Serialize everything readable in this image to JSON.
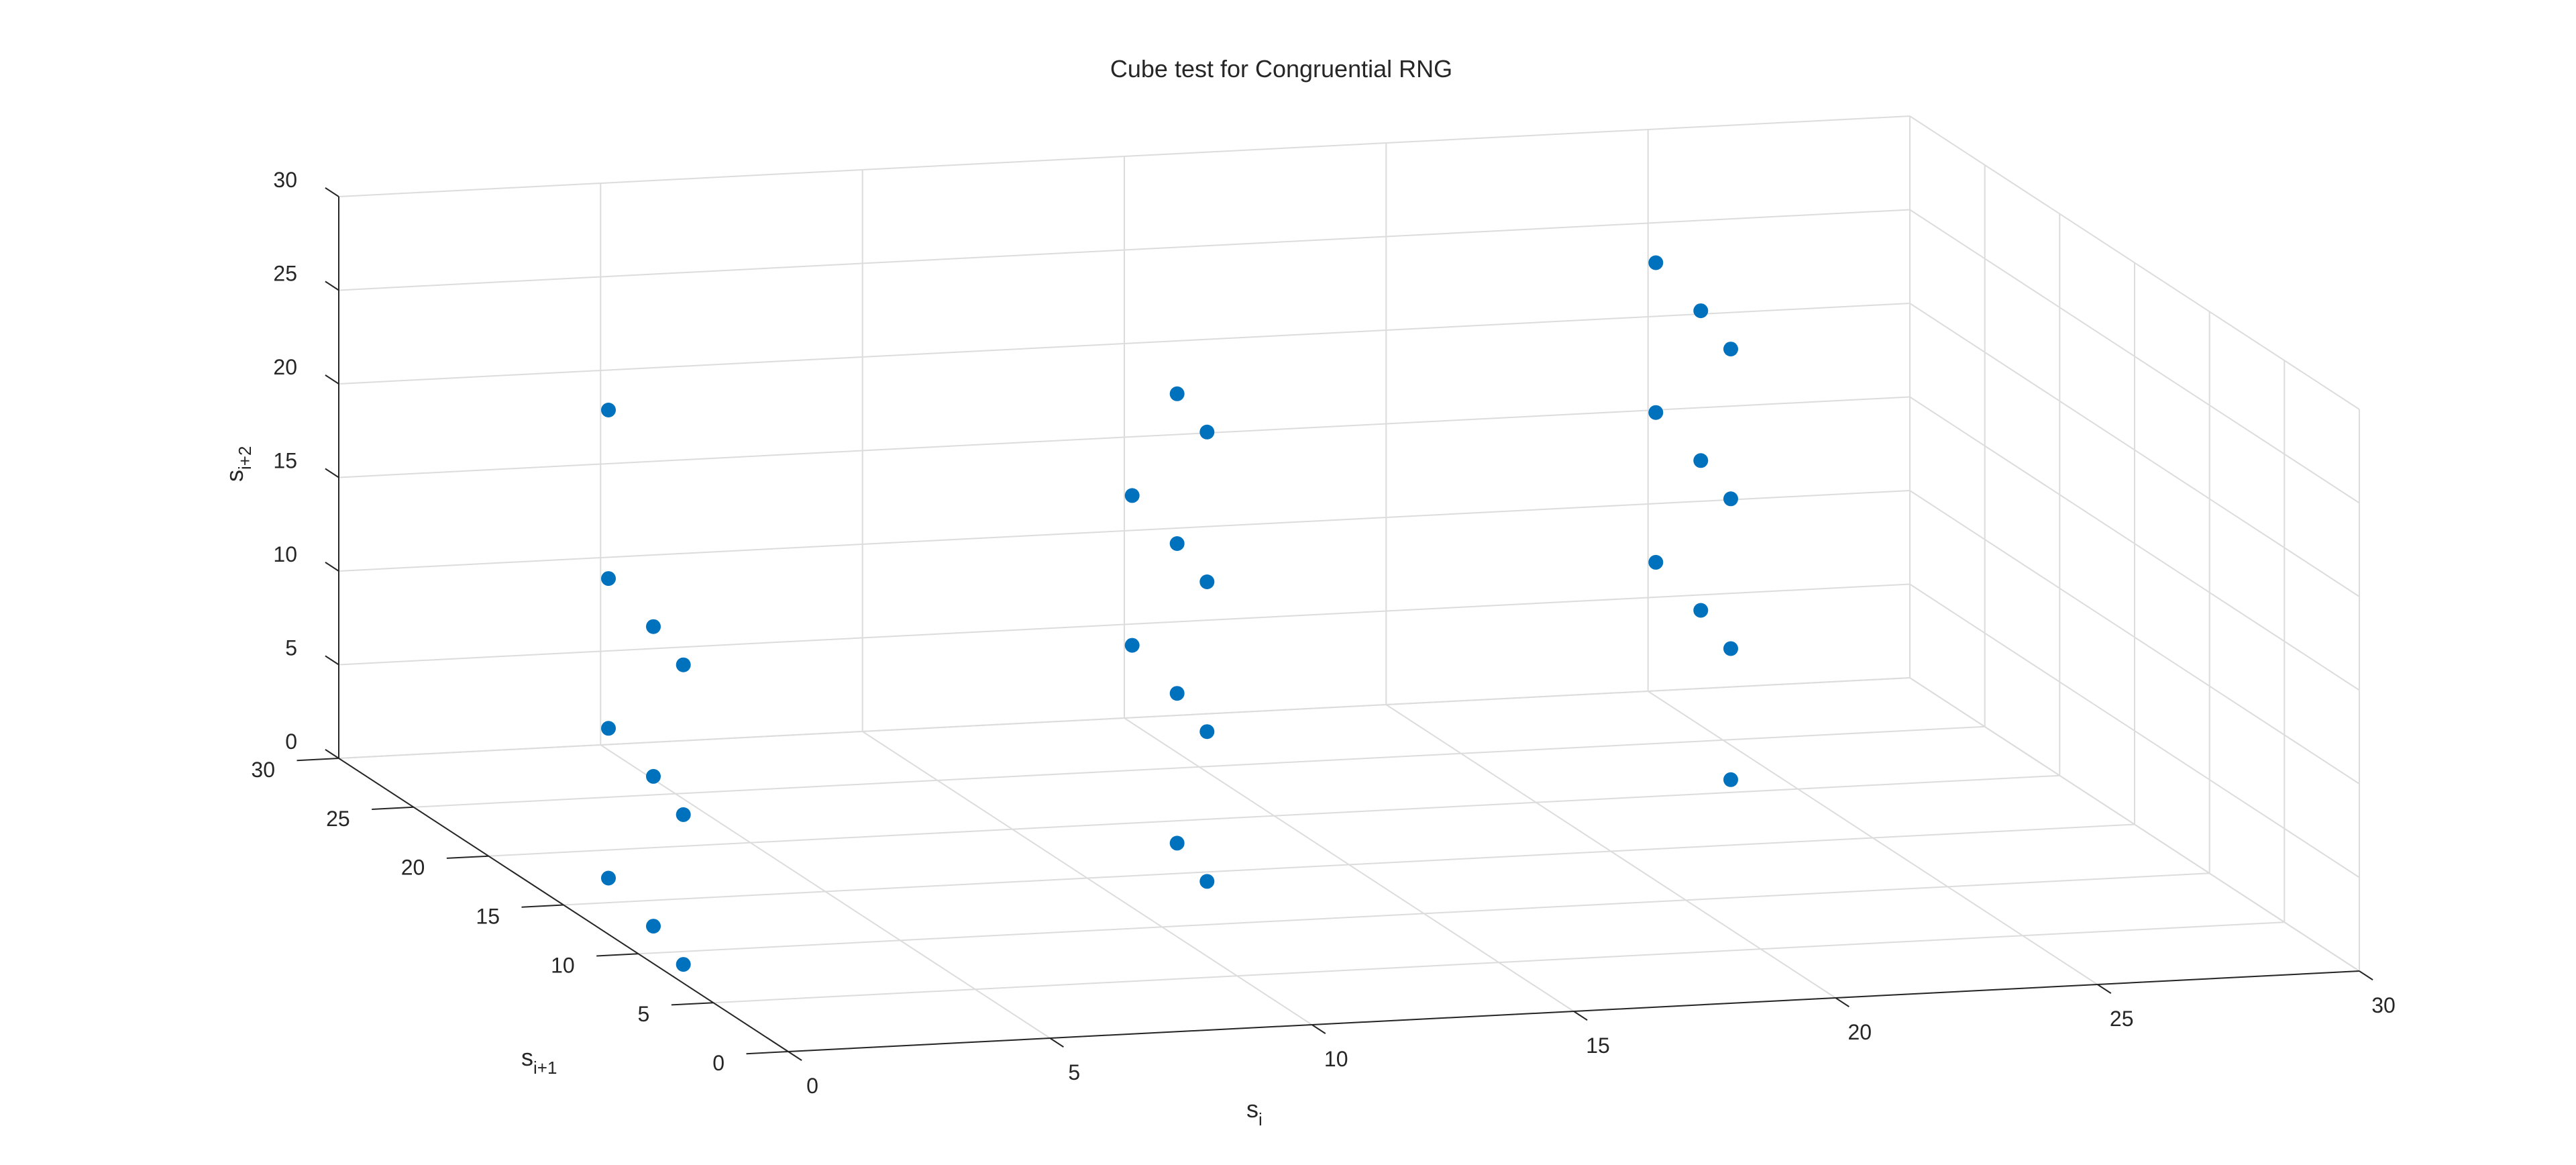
{
  "chart_data": {
    "type": "scatter3d",
    "title": "Cube test for Congruential RNG",
    "xlabel": {
      "main": "s",
      "sub": "i"
    },
    "ylabel": {
      "main": "s",
      "sub": "i+1"
    },
    "zlabel": {
      "main": "s",
      "sub": "i+2"
    },
    "xlim": [
      0,
      30
    ],
    "ylim": [
      0,
      30
    ],
    "zlim": [
      0,
      30
    ],
    "xticks": [
      "0",
      "5",
      "10",
      "15",
      "20",
      "25",
      "30"
    ],
    "yticks": [
      "0",
      "5",
      "10",
      "15",
      "20",
      "25",
      "30"
    ],
    "zticks": [
      "0",
      "5",
      "10",
      "15",
      "20",
      "25",
      "30"
    ],
    "grid": true,
    "marker_color": "#0072bd",
    "points": [
      {
        "x": 0,
        "y": 7,
        "z": 1
      },
      {
        "x": 0,
        "y": 9,
        "z": 2
      },
      {
        "x": 0,
        "y": 12,
        "z": 3
      },
      {
        "x": 0,
        "y": 7,
        "z": 9
      },
      {
        "x": 0,
        "y": 9,
        "z": 10
      },
      {
        "x": 0,
        "y": 12,
        "z": 11
      },
      {
        "x": 0,
        "y": 7,
        "z": 17
      },
      {
        "x": 0,
        "y": 9,
        "z": 18
      },
      {
        "x": 0,
        "y": 12,
        "z": 19
      },
      {
        "x": 0,
        "y": 12,
        "z": 28
      },
      {
        "x": 10,
        "y": 7,
        "z": 4
      },
      {
        "x": 10,
        "y": 9,
        "z": 5
      },
      {
        "x": 10,
        "y": 7,
        "z": 12
      },
      {
        "x": 10,
        "y": 9,
        "z": 13
      },
      {
        "x": 10,
        "y": 12,
        "z": 14
      },
      {
        "x": 10,
        "y": 7,
        "z": 20
      },
      {
        "x": 10,
        "y": 9,
        "z": 21
      },
      {
        "x": 10,
        "y": 12,
        "z": 22
      },
      {
        "x": 10,
        "y": 7,
        "z": 28
      },
      {
        "x": 10,
        "y": 9,
        "z": 29
      },
      {
        "x": 20,
        "y": 7,
        "z": 8
      },
      {
        "x": 20,
        "y": 7,
        "z": 15
      },
      {
        "x": 20,
        "y": 9,
        "z": 16
      },
      {
        "x": 20,
        "y": 12,
        "z": 17
      },
      {
        "x": 20,
        "y": 7,
        "z": 23
      },
      {
        "x": 20,
        "y": 9,
        "z": 24
      },
      {
        "x": 20,
        "y": 12,
        "z": 25
      },
      {
        "x": 20,
        "y": 7,
        "z": 31
      },
      {
        "x": 20,
        "y": 9,
        "z": 32
      },
      {
        "x": 20,
        "y": 12,
        "z": 33
      }
    ]
  }
}
